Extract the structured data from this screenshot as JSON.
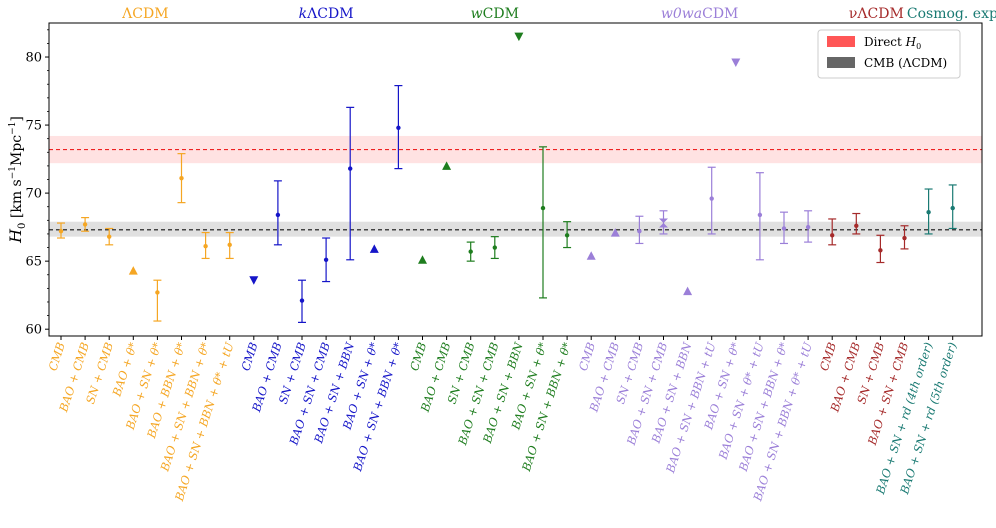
{
  "chart_data": {
    "type": "scatter",
    "title": "",
    "xlabel": "",
    "ylabel": "H_0 [km s^-1 Mpc^-1]",
    "ylabel_parts": {
      "symbol": "H",
      "sub": "0",
      "units": "[km s",
      "exp1": "−1",
      "mid": "Mpc",
      "exp2": "−1",
      "close": "]"
    },
    "ylim": [
      59.5,
      82.5
    ],
    "yticks": [
      "60",
      "65",
      "70",
      "75",
      "80"
    ],
    "colors": {
      "LCDM": "#f5a623",
      "kLCDM": "#1515c8",
      "wCDM": "#1e7d1e",
      "w0waCDM": "#9b7fd8",
      "nuLCDM": "#a52a2a",
      "Cosmog": "#1a7a73",
      "direct": "#ff4d4d",
      "cmb": "#555555"
    },
    "groups": [
      {
        "name": "ΛCDM",
        "color": "LCDM"
      },
      {
        "name": "kΛCDM",
        "color": "kLCDM"
      },
      {
        "name": "wCDM",
        "color": "wCDM"
      },
      {
        "name": "w0waCDM",
        "color": "w0waCDM"
      },
      {
        "name": "νΛCDM",
        "color": "nuLCDM"
      },
      {
        "name": "Cosmog. exp.",
        "color": "Cosmog"
      }
    ],
    "bands": [
      {
        "name": "Direct H0",
        "center": 73.2,
        "lo": 72.2,
        "hi": 74.2,
        "color": "direct"
      },
      {
        "name": "CMB (ΛCDM)",
        "center": 67.3,
        "lo": 66.8,
        "hi": 67.9,
        "color": "cmb"
      }
    ],
    "legend": [
      {
        "label": "Direct",
        "math": "H",
        "sub": "0",
        "color": "direct"
      },
      {
        "label": "CMB (ΛCDM)",
        "math": "",
        "sub": "",
        "color": "cmb"
      }
    ],
    "legend_position": "top-right",
    "points": [
      {
        "label": "CMB",
        "group": 0,
        "y": 67.2,
        "lo": 66.7,
        "hi": 67.8,
        "marker": "dot"
      },
      {
        "label": "BAO + CMB",
        "group": 0,
        "y": 67.7,
        "lo": 67.2,
        "hi": 68.2,
        "marker": "dot"
      },
      {
        "label": "SN + CMB",
        "group": 0,
        "y": 66.8,
        "lo": 66.2,
        "hi": 67.4,
        "marker": "dot"
      },
      {
        "label": "BAO + θ*",
        "group": 0,
        "y": 64.3,
        "lo": null,
        "hi": null,
        "marker": "up"
      },
      {
        "label": "BAO + SN + θ*",
        "group": 0,
        "y": 62.7,
        "lo": 60.6,
        "hi": 63.6,
        "marker": "dot"
      },
      {
        "label": "BAO + BBN + θ*",
        "group": 0,
        "y": 71.1,
        "lo": 69.3,
        "hi": 72.9,
        "marker": "dot"
      },
      {
        "label": "BAO + SN + BBN + θ*",
        "group": 0,
        "y": 66.1,
        "lo": 65.2,
        "hi": 67.1,
        "marker": "dot"
      },
      {
        "label": "BAO + SN + BBN + θ* + tU",
        "group": 0,
        "y": 66.2,
        "lo": 65.2,
        "hi": 67.1,
        "marker": "dot"
      },
      {
        "label": "CMB",
        "group": 1,
        "y": 63.6,
        "lo": null,
        "hi": null,
        "marker": "down"
      },
      {
        "label": "BAO + CMB",
        "group": 1,
        "y": 68.4,
        "lo": 66.2,
        "hi": 70.9,
        "marker": "dot"
      },
      {
        "label": "SN + CMB",
        "group": 1,
        "y": 62.1,
        "lo": 60.5,
        "hi": 63.6,
        "marker": "dot"
      },
      {
        "label": "BAO + SN + CMB",
        "group": 1,
        "y": 65.1,
        "lo": 63.5,
        "hi": 66.7,
        "marker": "dot"
      },
      {
        "label": "BAO + SN + BBN",
        "group": 1,
        "y": 71.8,
        "lo": 65.1,
        "hi": 76.3,
        "marker": "dot"
      },
      {
        "label": "BAO + SN + θ*",
        "group": 1,
        "y": 65.9,
        "lo": null,
        "hi": null,
        "marker": "up"
      },
      {
        "label": "BAO + SN + BBN + θ*",
        "group": 1,
        "y": 74.8,
        "lo": 71.8,
        "hi": 77.9,
        "marker": "dot"
      },
      {
        "label": "CMB",
        "group": 2,
        "y": 65.1,
        "lo": null,
        "hi": null,
        "marker": "up"
      },
      {
        "label": "BAO + CMB",
        "group": 2,
        "y": 72.0,
        "lo": null,
        "hi": null,
        "marker": "up"
      },
      {
        "label": "SN + CMB",
        "group": 2,
        "y": 65.7,
        "lo": 65.0,
        "hi": 66.4,
        "marker": "dot"
      },
      {
        "label": "BAO + SN + CMB",
        "group": 2,
        "y": 66.0,
        "lo": 65.2,
        "hi": 66.8,
        "marker": "dot"
      },
      {
        "label": "BAO + SN + BBN",
        "group": 2,
        "y": 81.5,
        "lo": null,
        "hi": null,
        "marker": "down"
      },
      {
        "label": "BAO + SN + θ*",
        "group": 2,
        "y": 68.9,
        "lo": 62.3,
        "hi": 73.4,
        "marker": "dot"
      },
      {
        "label": "BAO + SN + BBN + θ*",
        "group": 2,
        "y": 66.9,
        "lo": 66.0,
        "hi": 67.9,
        "marker": "dot"
      },
      {
        "label": "CMB",
        "group": 3,
        "y": 65.4,
        "lo": null,
        "hi": null,
        "marker": "up"
      },
      {
        "label": "BAO + CMB",
        "group": 3,
        "y": 67.1,
        "lo": null,
        "hi": null,
        "marker": "up"
      },
      {
        "label": "SN + CMB",
        "group": 3,
        "y": 67.2,
        "lo": 66.3,
        "hi": 68.3,
        "marker": "dot"
      },
      {
        "label": "BAO + SN + CMB",
        "group": 3,
        "y": 67.8,
        "lo": 67.0,
        "hi": 68.7,
        "marker": "bow"
      },
      {
        "label": "BAO + SN + BBN",
        "group": 3,
        "y": 62.8,
        "lo": null,
        "hi": null,
        "marker": "up"
      },
      {
        "label": "BAO + SN + BBN + tU",
        "group": 3,
        "y": 69.6,
        "lo": 67.0,
        "hi": 71.9,
        "marker": "dot"
      },
      {
        "label": "BAO + SN + θ*",
        "group": 3,
        "y": 79.6,
        "lo": null,
        "hi": null,
        "marker": "down"
      },
      {
        "label": "BAO + SN + θ* + tU",
        "group": 3,
        "y": 68.4,
        "lo": 65.1,
        "hi": 71.5,
        "marker": "dot"
      },
      {
        "label": "BAO + SN + BBN + θ*",
        "group": 3,
        "y": 67.4,
        "lo": 66.3,
        "hi": 68.6,
        "marker": "dot"
      },
      {
        "label": "BAO + SN + BBN + θ* + tU",
        "group": 3,
        "y": 67.5,
        "lo": 66.4,
        "hi": 68.7,
        "marker": "dot"
      },
      {
        "label": "CMB",
        "group": 4,
        "y": 66.9,
        "lo": 66.2,
        "hi": 68.1,
        "marker": "dot"
      },
      {
        "label": "BAO + CMB",
        "group": 4,
        "y": 67.6,
        "lo": 67.0,
        "hi": 68.5,
        "marker": "dot"
      },
      {
        "label": "SN + CMB",
        "group": 4,
        "y": 65.8,
        "lo": 64.9,
        "hi": 66.9,
        "marker": "dot"
      },
      {
        "label": "BAO + SN + CMB",
        "group": 4,
        "y": 66.7,
        "lo": 65.9,
        "hi": 67.6,
        "marker": "dot"
      },
      {
        "label": "BAO + SN + rd (4th order)",
        "group": 5,
        "y": 68.6,
        "lo": 67.0,
        "hi": 70.3,
        "marker": "dot"
      },
      {
        "label": "BAO + SN + rd (5th order)",
        "group": 5,
        "y": 68.9,
        "lo": 67.4,
        "hi": 70.6,
        "marker": "dot"
      }
    ]
  }
}
